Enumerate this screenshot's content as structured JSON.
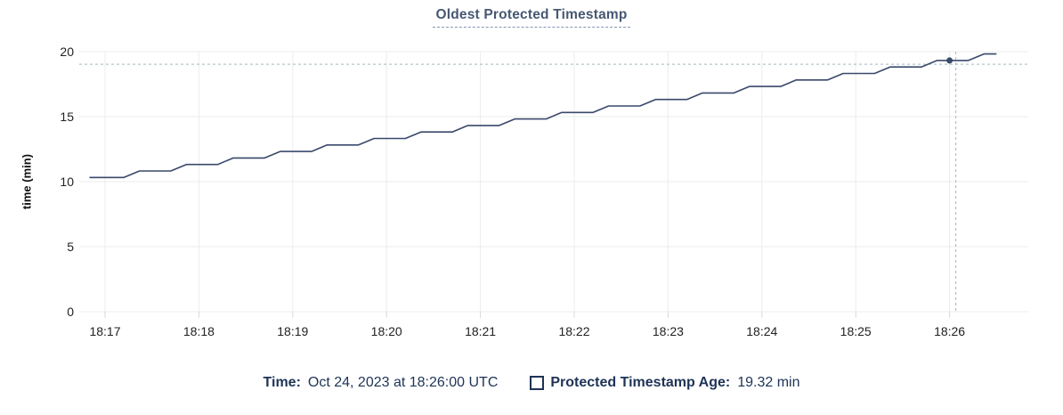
{
  "chart_data": {
    "type": "line",
    "title": "Oldest Protected Timestamp",
    "xlabel": "",
    "ylabel": "time (min)",
    "ylim": [
      0,
      20
    ],
    "yticks": [
      0,
      5,
      10,
      15,
      20
    ],
    "xticklabels": [
      "18:17",
      "18:18",
      "18:19",
      "18:20",
      "18:21",
      "18:22",
      "18:23",
      "18:24",
      "18:25",
      "18:26"
    ],
    "x_unit": "seconds after 18:17:00",
    "grid": true,
    "legend_position": "bottom",
    "series": [
      {
        "name": "Protected Timestamp Age",
        "unit": "min",
        "points": [
          [
            -10,
            10.32
          ],
          [
            12,
            10.32
          ],
          [
            22,
            10.82
          ],
          [
            42,
            10.82
          ],
          [
            52,
            11.32
          ],
          [
            72,
            11.32
          ],
          [
            82,
            11.82
          ],
          [
            102,
            11.82
          ],
          [
            112,
            12.32
          ],
          [
            132,
            12.32
          ],
          [
            142,
            12.82
          ],
          [
            162,
            12.82
          ],
          [
            172,
            13.32
          ],
          [
            192,
            13.32
          ],
          [
            202,
            13.82
          ],
          [
            222,
            13.82
          ],
          [
            232,
            14.32
          ],
          [
            252,
            14.32
          ],
          [
            262,
            14.82
          ],
          [
            282,
            14.82
          ],
          [
            292,
            15.32
          ],
          [
            312,
            15.32
          ],
          [
            322,
            15.82
          ],
          [
            342,
            15.82
          ],
          [
            352,
            16.32
          ],
          [
            372,
            16.32
          ],
          [
            382,
            16.82
          ],
          [
            402,
            16.82
          ],
          [
            412,
            17.32
          ],
          [
            432,
            17.32
          ],
          [
            442,
            17.82
          ],
          [
            462,
            17.82
          ],
          [
            472,
            18.32
          ],
          [
            492,
            18.32
          ],
          [
            502,
            18.82
          ],
          [
            522,
            18.82
          ],
          [
            532,
            19.32
          ],
          [
            552,
            19.32
          ],
          [
            562,
            19.82
          ],
          [
            570,
            19.82
          ]
        ]
      }
    ],
    "crosshair": {
      "cursor_time": "18:26:04",
      "cursor_t": 544,
      "cursor_value": 19.03,
      "highlighted_point": {
        "time": "18:26:00",
        "t": 540,
        "value": 19.32
      }
    }
  },
  "legend": {
    "time_label": "Time:",
    "time_value": "Oct 24, 2023 at 18:26:00 UTC",
    "series_checkbox_icon": "unchecked-square",
    "series_label": "Protected Timestamp Age:",
    "series_value": "19.32 min"
  },
  "colors": {
    "background": "#ffffff",
    "title": "#475872",
    "title_underline": "#8296b0",
    "legend_text": "#1e3357",
    "line": "#39496b",
    "grid": "#ececec",
    "tick": "#d9d9d9",
    "crosshair": "#a3b7c2",
    "axis_text": "#222222"
  }
}
